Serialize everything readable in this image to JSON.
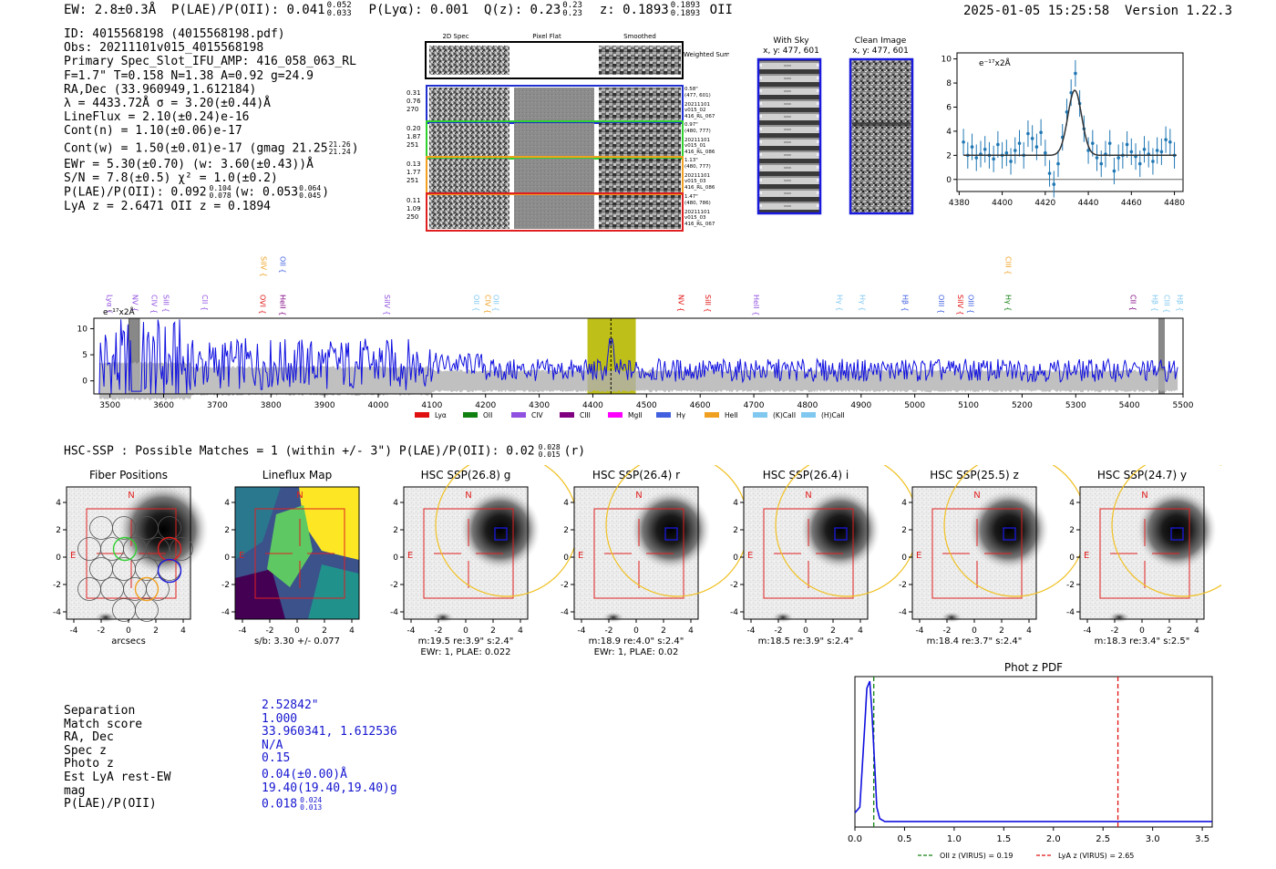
{
  "header": {
    "ew_text": "EW: 2.8±0.3Å",
    "plae_label": "P(LAE)/P(OII): 0.041",
    "plae_hi": "0.052",
    "plae_lo": "0.033",
    "plya": "P(Lyα): 0.001",
    "qz_label": "Q(z): 0.23",
    "qz_hi": "0.23",
    "qz_lo": "0.23",
    "z_label": "z: 0.1893",
    "z_hi": "0.1893",
    "z_lo": "0.1893",
    "z_line": "OII",
    "timestamp": "2025-01-05 15:25:58",
    "version": "Version 1.22.3"
  },
  "info": {
    "id": "ID: 4015568198 (4015568198.pdf)",
    "obs": "Obs: 20211101v015_4015568198",
    "primary": "Primary Spec_Slot_IFU_AMP: 416_058_063_RL",
    "fit": "F=1.7\"  T=0.158  N=1.38  A=0.92  g=24.9",
    "radec": "RA,Dec (33.960949,1.612184)",
    "lambda": "λ = 4433.72Å  σ = 3.20(±0.44)Å",
    "lineflux": "LineFlux = 2.10(±0.24)e-16",
    "contn": "Cont(n) = 1.10(±0.06)e-17",
    "contw": "Cont(w) = 1.50(±0.01)e-17 (gmag 21.25",
    "contw_hi": "21.26",
    "contw_lo": "21.24",
    "contw_end": ")",
    "ewr": "EWr = 5.30(±0.70) (w: 3.60(±0.43))Å",
    "sn": "S/N = 7.8(±0.5)  χ² = 1.0(±0.2)",
    "plae": "P(LAE)/P(OII): 0.092",
    "plae_hi": "0.104",
    "plae_lo": "0.078",
    "plae_w": "(w: 0.053",
    "plae_w_hi": "0.064",
    "plae_w_lo": "0.045",
    "plae_w_end": ")",
    "lyaz": "LyA z = 2.6471   OII z = 0.1894"
  },
  "cutouts": {
    "col_titles": [
      "2D Spec",
      "Pixel Flat",
      "Smoothed"
    ],
    "weighted_label": "Weighted\nSum",
    "rows": [
      {
        "w": [
          "0.31",
          "0.76",
          "270"
        ],
        "info": [
          "0.58\"",
          "(477, 601)",
          "20211101",
          "v015_02",
          "416_RL_067"
        ],
        "color": "#2030d0"
      },
      {
        "w": [
          "0.20",
          "1.87",
          "251"
        ],
        "info": [
          "0.97\"",
          "(480, 777)",
          "20211101",
          "v015_01",
          "416_RL_086"
        ],
        "color": "#30d030"
      },
      {
        "w": [
          "0.13",
          "1.77",
          "251"
        ],
        "info": [
          "1.13\"",
          "(480, 777)",
          "20211101",
          "v015_03",
          "416_RL_086"
        ],
        "color": "#f0a020"
      },
      {
        "w": [
          "0.11",
          "1.09",
          "250"
        ],
        "info": [
          "1.47\"",
          "(480, 786)",
          "20211101",
          "v015_03",
          "416_RL_067"
        ],
        "color": "#e02020"
      }
    ],
    "with_sky_title": "With Sky",
    "with_sky_sub": "x, y: 477, 601",
    "clean_title": "Clean Image",
    "clean_sub": "x, y: 477, 601"
  },
  "zoom_chart": {
    "type": "scatter",
    "unit_label": "e⁻¹⁷x2Å",
    "x": [
      4382,
      4384,
      4386,
      4388,
      4390,
      4392,
      4394,
      4396,
      4398,
      4400,
      4402,
      4404,
      4406,
      4408,
      4410,
      4412,
      4414,
      4416,
      4418,
      4420,
      4422,
      4424,
      4426,
      4428,
      4430,
      4432,
      4434,
      4436,
      4438,
      4440,
      4442,
      4444,
      4446,
      4448,
      4450,
      4452,
      4454,
      4456,
      4458,
      4460,
      4462,
      4464,
      4466,
      4468,
      4470,
      4472,
      4474,
      4476,
      4478,
      4480
    ],
    "y": [
      3.1,
      2.0,
      2.7,
      1.8,
      2.1,
      2.5,
      2.0,
      1.7,
      2.9,
      2.0,
      2.2,
      1.5,
      2.4,
      3.0,
      2.0,
      3.8,
      3.4,
      2.7,
      3.9,
      2.2,
      0.5,
      -0.4,
      1.3,
      3.5,
      5.6,
      7.2,
      8.8,
      6.3,
      4.2,
      2.4,
      3.0,
      1.8,
      1.3,
      2.1,
      3.0,
      0.7,
      1.8,
      2.0,
      2.9,
      2.3,
      1.9,
      1.3,
      2.5,
      2.1,
      1.5,
      2.4,
      2.3,
      3.3,
      3.1,
      2.0
    ],
    "xticks": [
      4380,
      4400,
      4420,
      4440,
      4460,
      4480
    ],
    "yticks": [
      0,
      2,
      4,
      6,
      8,
      10
    ],
    "xlim": [
      4379,
      4484
    ],
    "ylim": [
      -1.0,
      10.5
    ],
    "fit_center": 4433.7,
    "fit_sigma": 3.2,
    "fit_amp": 5.4,
    "fit_base": 2.0
  },
  "spectrum_chart": {
    "type": "line",
    "unit_label": "e⁻¹⁷x2Å",
    "xlim": [
      3470,
      5500
    ],
    "ylim": [
      -2.5,
      12
    ],
    "xticks": [
      3500,
      3600,
      3700,
      3800,
      3900,
      4000,
      4100,
      4200,
      4300,
      4400,
      4500,
      4600,
      4700,
      4800,
      4900,
      5000,
      5100,
      5200,
      5300,
      5400,
      5500
    ],
    "yticks": [
      0,
      5,
      10
    ],
    "highlight_range": [
      4390,
      4480
    ],
    "highlight_center": 4433.7,
    "masked_ranges": [
      [
        3535,
        3555
      ],
      [
        5455,
        5465
      ]
    ],
    "legend": [
      {
        "name": "Lyα",
        "color": "#e01010"
      },
      {
        "name": "OII",
        "color": "#108010"
      },
      {
        "name": "CIV",
        "color": "#9050e0"
      },
      {
        "name": "CIII",
        "color": "#800080"
      },
      {
        "name": "MgII",
        "color": "#ff00ff"
      },
      {
        "name": "Hγ",
        "color": "#4060e0"
      },
      {
        "name": "HeII",
        "color": "#f0a020"
      },
      {
        "name": "(K)CaII",
        "color": "#80c8f0"
      },
      {
        "name": "(H)CaII",
        "color": "#80c8f0"
      }
    ],
    "line_labels": [
      {
        "name": "Lyα",
        "x": 3495,
        "row": 0,
        "color": "#9050e0"
      },
      {
        "name": "NV",
        "x": 3542,
        "row": 0,
        "color": "#9050e0"
      },
      {
        "name": "CIV",
        "x": 3578,
        "row": 0,
        "color": "#9050e0"
      },
      {
        "name": "SiII",
        "x": 3600,
        "row": 0,
        "color": "#9050e0"
      },
      {
        "name": "CII",
        "x": 3672,
        "row": 0,
        "color": "#9050e0"
      },
      {
        "name": "OVI",
        "x": 3780,
        "row": 0,
        "color": "#e01010"
      },
      {
        "name": "SiIV",
        "x": 3782,
        "row": 1,
        "color": "#f0a020"
      },
      {
        "name": "OII",
        "x": 3817,
        "row": 1,
        "color": "#4060e0"
      },
      {
        "name": "HeII",
        "x": 3817,
        "row": 0,
        "color": "#800080"
      },
      {
        "name": "SiIV",
        "x": 4012,
        "row": 0,
        "color": "#9050e0"
      },
      {
        "name": "OII",
        "x": 4178,
        "row": 0,
        "color": "#80c8f0"
      },
      {
        "name": "CIV",
        "x": 4200,
        "row": 0,
        "color": "#f0a020"
      },
      {
        "name": "OII",
        "x": 4215,
        "row": 0,
        "color": "#80c8f0"
      },
      {
        "name": "NV",
        "x": 4560,
        "row": 0,
        "color": "#e01010"
      },
      {
        "name": "SiII",
        "x": 4610,
        "row": 0,
        "color": "#e01010"
      },
      {
        "name": "HeII",
        "x": 4700,
        "row": 0,
        "color": "#9050e0"
      },
      {
        "name": "Hγ",
        "x": 4855,
        "row": 0,
        "color": "#80c8f0"
      },
      {
        "name": "Hγ",
        "x": 4898,
        "row": 0,
        "color": "#80c8f0"
      },
      {
        "name": "Hβ",
        "x": 4978,
        "row": 0,
        "color": "#4060e0"
      },
      {
        "name": "OIII",
        "x": 5045,
        "row": 0,
        "color": "#4060e0"
      },
      {
        "name": "SiIV",
        "x": 5080,
        "row": 0,
        "color": "#e01010"
      },
      {
        "name": "OIII",
        "x": 5100,
        "row": 0,
        "color": "#4060e0"
      },
      {
        "name": "CIII",
        "x": 5170,
        "row": 1,
        "color": "#f0a020"
      },
      {
        "name": "Hγ",
        "x": 5170,
        "row": 0,
        "color": "#108010"
      },
      {
        "name": "CII",
        "x": 5402,
        "row": 0,
        "color": "#800080"
      },
      {
        "name": "Hβ",
        "x": 5443,
        "row": 0,
        "color": "#80c8f0"
      },
      {
        "name": "CIII",
        "x": 5465,
        "row": 0,
        "color": "#80c8f0"
      },
      {
        "name": "Hβ",
        "x": 5490,
        "row": 0,
        "color": "#80c8f0"
      }
    ]
  },
  "hsc": {
    "header_prefix": "HSC-SSP : Possible Matches = 1 (within +/- 3\")  P(LAE)/P(OII): 0.02",
    "header_hi": "0.028",
    "header_lo": "0.015",
    "header_suffix": "(r)",
    "axis_ticks": [
      "-4",
      "-2",
      "0",
      "2",
      "4"
    ],
    "panels": [
      {
        "title": "Fiber Positions",
        "caption": "arcsecs",
        "caption2": ""
      },
      {
        "title": "Lineflux Map",
        "caption": "s/b: 3.30 +/- 0.077",
        "caption2": ""
      },
      {
        "title": "HSC SSP(26.8) g",
        "caption": "m:19.5  re:3.9\"  s:2.4\"",
        "caption2": "EWr: 1, PLAE: 0.022"
      },
      {
        "title": "HSC SSP(26.4) r",
        "caption": "m:18.9  re:4.0\"  s:2.4\"",
        "caption2": "EWr: 1, PLAE: 0.02"
      },
      {
        "title": "HSC SSP(26.4) i",
        "caption": "m:18.5  re:3.9\"  s:2.4\"",
        "caption2": ""
      },
      {
        "title": "HSC SSP(25.5) z",
        "caption": "m:18.4  re:3.7\"  s:2.4\"",
        "caption2": ""
      },
      {
        "title": "HSC SSP(24.7) y",
        "caption": "m:18.3  re:3.4\"  s:2.5\"",
        "caption2": ""
      }
    ],
    "compass_n": "N",
    "compass_e": "E"
  },
  "match": {
    "labels": [
      "Separation",
      "Match score",
      "RA, Dec",
      "Spec z",
      "Photo z",
      "Est LyA rest-EW",
      "mag",
      "P(LAE)/P(OII)"
    ],
    "values": [
      "2.52842\"",
      "1.000",
      "33.960341, 1.612536",
      "N/A",
      "0.15",
      "0.04(±0.00)Å",
      "19.40(19.40,19.40)g",
      "0.018"
    ],
    "plae_hi": "0.024",
    "plae_lo": "0.013"
  },
  "photz_chart": {
    "type": "line",
    "title": "Phot z PDF",
    "xlim": [
      0.0,
      3.6
    ],
    "xticks": [
      "0.0",
      "0.5",
      "1.0",
      "1.5",
      "2.0",
      "2.5",
      "3.0",
      "3.5"
    ],
    "x": [
      0.0,
      0.05,
      0.1,
      0.12,
      0.15,
      0.17,
      0.2,
      0.22,
      0.25,
      0.3,
      0.4,
      0.6,
      1.0,
      2.0,
      3.0,
      3.6
    ],
    "y": [
      0.08,
      0.12,
      0.7,
      0.95,
      1.0,
      0.8,
      0.4,
      0.12,
      0.04,
      0.02,
      0.02,
      0.02,
      0.02,
      0.02,
      0.02,
      0.02
    ],
    "oii_z": 0.19,
    "lya_z": 2.65,
    "legend_oii": "OII z (VIRUS) = 0.19",
    "legend_lya": "LyA z (VIRUS) = 2.65"
  }
}
